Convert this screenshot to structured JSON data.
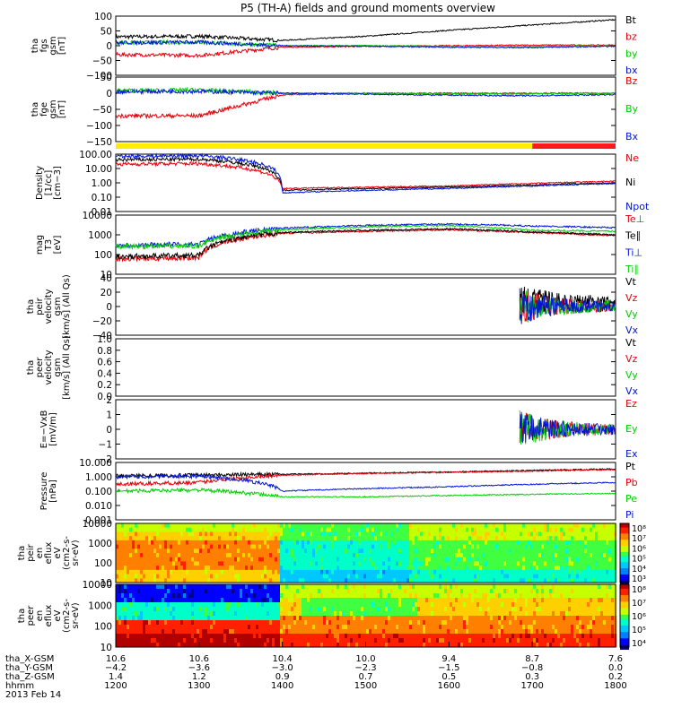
{
  "title": "P5 (TH-A) fields and ground moments overview",
  "colors": {
    "black": "#000000",
    "red": "#e8000b",
    "green": "#00d000",
    "blue": "#0015d8",
    "yellow": "#ffee00",
    "barred": "#ff1a1a"
  },
  "x_range": [
    1200,
    1800
  ],
  "mode_bar": {
    "segments": [
      {
        "start": 1200,
        "end": 1700,
        "color": "yellow"
      },
      {
        "start": 1700,
        "end": 1800,
        "color": "barred"
      }
    ]
  },
  "panels": [
    {
      "id": "fgs",
      "ylabel": [
        "tha",
        "fgs",
        "gsm",
        "[nT]"
      ],
      "ytick_labels": [
        "100",
        "50",
        "0",
        "−50",
        "−100"
      ],
      "ylim": [
        -100,
        100
      ],
      "legend": [
        {
          "text": "Bt",
          "color": "black"
        },
        {
          "text": "bz",
          "color": "red"
        },
        {
          "text": "by",
          "color": "green"
        },
        {
          "text": "bx",
          "color": "blue"
        }
      ]
    },
    {
      "id": "fge",
      "ylabel": [
        "tha",
        "fge",
        "gsm",
        "[nT]"
      ],
      "ytick_labels": [
        "50",
        "0",
        "−50",
        "−100",
        "−150"
      ],
      "ylim": [
        -150,
        50
      ],
      "legend": [
        {
          "text": "Bz",
          "color": "red"
        },
        {
          "text": "By",
          "color": "green"
        },
        {
          "text": "Bx",
          "color": "blue"
        }
      ]
    },
    {
      "id": "density",
      "ylabel": [
        "Density",
        "[1/cc]",
        "[cm−3]"
      ],
      "ytick_labels": [
        "100.00",
        "10.00",
        "1.00",
        "0.10",
        "0.01"
      ],
      "log": true,
      "ylim": [
        0.01,
        100
      ],
      "legend": [
        {
          "text": "Ne",
          "color": "red"
        },
        {
          "text": "Ni",
          "color": "black"
        },
        {
          "text": "Npot",
          "color": "blue"
        }
      ]
    },
    {
      "id": "temp",
      "ylabel": [
        "mag",
        "T3",
        "[eV]"
      ],
      "ytick_labels": [
        "10000",
        "1000",
        "100",
        "10"
      ],
      "log": true,
      "ylim": [
        10,
        10000
      ],
      "legend": [
        {
          "text": "Te⊥",
          "color": "red"
        },
        {
          "text": "Te∥",
          "color": "black"
        },
        {
          "text": "Ti⊥",
          "color": "blue"
        },
        {
          "text": "Ti∥",
          "color": "green"
        }
      ]
    },
    {
      "id": "peir_vel",
      "ylabel": [
        "tha",
        "peir",
        "velocity",
        "gsm",
        "[km/s] (All Qs)"
      ],
      "ytick_labels": [
        "40",
        "20",
        "0",
        "−20",
        "−40"
      ],
      "ylim": [
        -40,
        40
      ],
      "legend": [
        {
          "text": "Vt",
          "color": "black"
        },
        {
          "text": "Vz",
          "color": "red"
        },
        {
          "text": "Vy",
          "color": "green"
        },
        {
          "text": "Vx",
          "color": "blue"
        }
      ]
    },
    {
      "id": "peer_vel",
      "ylabel": [
        "tha",
        "peer",
        "velocity",
        "gsm",
        "[km/s] (All Qs)"
      ],
      "ytick_labels": [
        "1.0",
        "0.8",
        "0.6",
        "0.4",
        "0.2",
        "0.0"
      ],
      "ylim": [
        0,
        1
      ],
      "legend": [
        {
          "text": "Vt",
          "color": "black"
        },
        {
          "text": "Vz",
          "color": "red"
        },
        {
          "text": "Vy",
          "color": "green"
        },
        {
          "text": "Vx",
          "color": "blue"
        }
      ]
    },
    {
      "id": "efield",
      "ylabel": [
        "E=−VxB",
        "[mV/m]"
      ],
      "ytick_labels": [
        "2",
        "1",
        "0",
        "−1",
        "−2"
      ],
      "ylim": [
        -2,
        2
      ],
      "legend": [
        {
          "text": "Ez",
          "color": "red"
        },
        {
          "text": "Ey",
          "color": "green"
        },
        {
          "text": "Ex",
          "color": "blue"
        }
      ]
    },
    {
      "id": "pressure",
      "ylabel": [
        "Pressure",
        "[nPa]"
      ],
      "ytick_labels": [
        "10.000",
        "1.000",
        "0.100",
        "0.010",
        "0.001"
      ],
      "log": true,
      "ylim": [
        0.001,
        10
      ],
      "legend": [
        {
          "text": "Pt",
          "color": "black"
        },
        {
          "text": "Pb",
          "color": "red"
        },
        {
          "text": "Pe",
          "color": "green"
        },
        {
          "text": "Pi",
          "color": "blue"
        }
      ]
    },
    {
      "id": "peir_spec",
      "ylabel": [
        "tha",
        "peir",
        "en",
        "eflux",
        "eV",
        "(cm2-s-",
        "sr-eV)"
      ],
      "ytick_labels": [
        "10000",
        "1000",
        "100",
        "10"
      ],
      "log": true,
      "colorbar": [
        "10⁸",
        "10⁷",
        "10⁶",
        "10⁵",
        "10⁴",
        "10³"
      ]
    },
    {
      "id": "peer_spec",
      "ylabel": [
        "tha",
        "peer",
        "en",
        "eflux",
        "eV",
        "(cm2-s-",
        "sr-eV)"
      ],
      "ytick_labels": [
        "10000",
        "1000",
        "100",
        "10"
      ],
      "log": true,
      "colorbar": [
        "10⁸",
        "10⁷",
        "10⁶",
        "10⁵",
        "10⁴"
      ]
    }
  ],
  "x_axis": {
    "rows": [
      {
        "name": "tha_X-GSM",
        "values": [
          "10.6",
          "10.6",
          "10.4",
          "10.0",
          "9.4",
          "8.7",
          "7.6"
        ]
      },
      {
        "name": "tha_Y-GSM",
        "values": [
          "−4.2",
          "−3.6",
          "−3.0",
          "−2.3",
          "−1.5",
          "−0.8",
          "0.0"
        ]
      },
      {
        "name": "tha_Z-GSM",
        "values": [
          "1.4",
          "1.2",
          "0.9",
          "0.7",
          "0.5",
          "0.3",
          "0.2"
        ]
      },
      {
        "name": "hhmm",
        "values": [
          "1200",
          "1300",
          "1400",
          "1500",
          "1600",
          "1700",
          "1800"
        ]
      }
    ],
    "date": "2013 Feb 14"
  },
  "chart_data": {
    "type": "line",
    "title": "P5 (TH-A) fields and ground moments overview",
    "x": [
      1200,
      1300,
      1400,
      1500,
      1600,
      1700,
      1800
    ],
    "xlabel": "hhmm",
    "series": [
      {
        "name": "Bt",
        "panel": "fgs",
        "values": [
          30,
          32,
          18,
          32,
          52,
          70,
          88
        ]
      },
      {
        "name": "bz",
        "panel": "fgs",
        "values": [
          -30,
          -33,
          -5,
          -2,
          0,
          2,
          2
        ]
      },
      {
        "name": "by",
        "panel": "fgs",
        "values": [
          10,
          12,
          0,
          0,
          -2,
          -3,
          0
        ]
      },
      {
        "name": "bx",
        "panel": "fgs",
        "values": [
          10,
          12,
          0,
          -2,
          -5,
          -6,
          -2
        ]
      },
      {
        "name": "Bz",
        "panel": "fge",
        "values": [
          -70,
          -70,
          -5,
          0,
          0,
          0,
          0
        ]
      },
      {
        "name": "By",
        "panel": "fge",
        "values": [
          8,
          10,
          0,
          0,
          -2,
          -2,
          0
        ]
      },
      {
        "name": "Bx",
        "panel": "fge",
        "values": [
          5,
          6,
          0,
          -3,
          -6,
          -8,
          -4
        ]
      },
      {
        "name": "Ne",
        "panel": "density",
        "values": [
          20,
          22,
          0.4,
          0.5,
          0.6,
          0.9,
          1.3
        ]
      },
      {
        "name": "Ni",
        "panel": "density",
        "values": [
          40,
          45,
          0.3,
          0.4,
          0.5,
          0.7,
          1.0
        ]
      },
      {
        "name": "Npot",
        "panel": "density",
        "values": [
          70,
          80,
          0.2,
          0.3,
          0.4,
          0.6,
          0.9
        ]
      },
      {
        "name": "Te⊥",
        "panel": "temp",
        "values": [
          60,
          70,
          1200,
          1500,
          1800,
          1300,
          900
        ]
      },
      {
        "name": "Te∥",
        "panel": "temp",
        "values": [
          80,
          90,
          1300,
          1700,
          2000,
          1400,
          1000
        ]
      },
      {
        "name": "Ti⊥",
        "panel": "temp",
        "values": [
          300,
          330,
          2200,
          3000,
          3500,
          2800,
          2300
        ]
      },
      {
        "name": "Ti∥",
        "panel": "temp",
        "values": [
          250,
          280,
          1800,
          2500,
          3000,
          1700,
          1500
        ]
      },
      {
        "name": "Pt",
        "panel": "pressure",
        "values": [
          1.2,
          1.3,
          1.5,
          1.8,
          2.2,
          2.8,
          3.5
        ]
      },
      {
        "name": "Pb",
        "panel": "pressure",
        "values": [
          0.3,
          0.4,
          1.3,
          1.7,
          2.0,
          2.5,
          3.2
        ]
      },
      {
        "name": "Pe",
        "panel": "pressure",
        "values": [
          0.1,
          0.12,
          0.04,
          0.04,
          0.05,
          0.06,
          0.07
        ]
      },
      {
        "name": "Pi",
        "panel": "pressure",
        "values": [
          1.0,
          1.1,
          0.1,
          0.15,
          0.2,
          0.3,
          0.4
        ]
      }
    ]
  }
}
